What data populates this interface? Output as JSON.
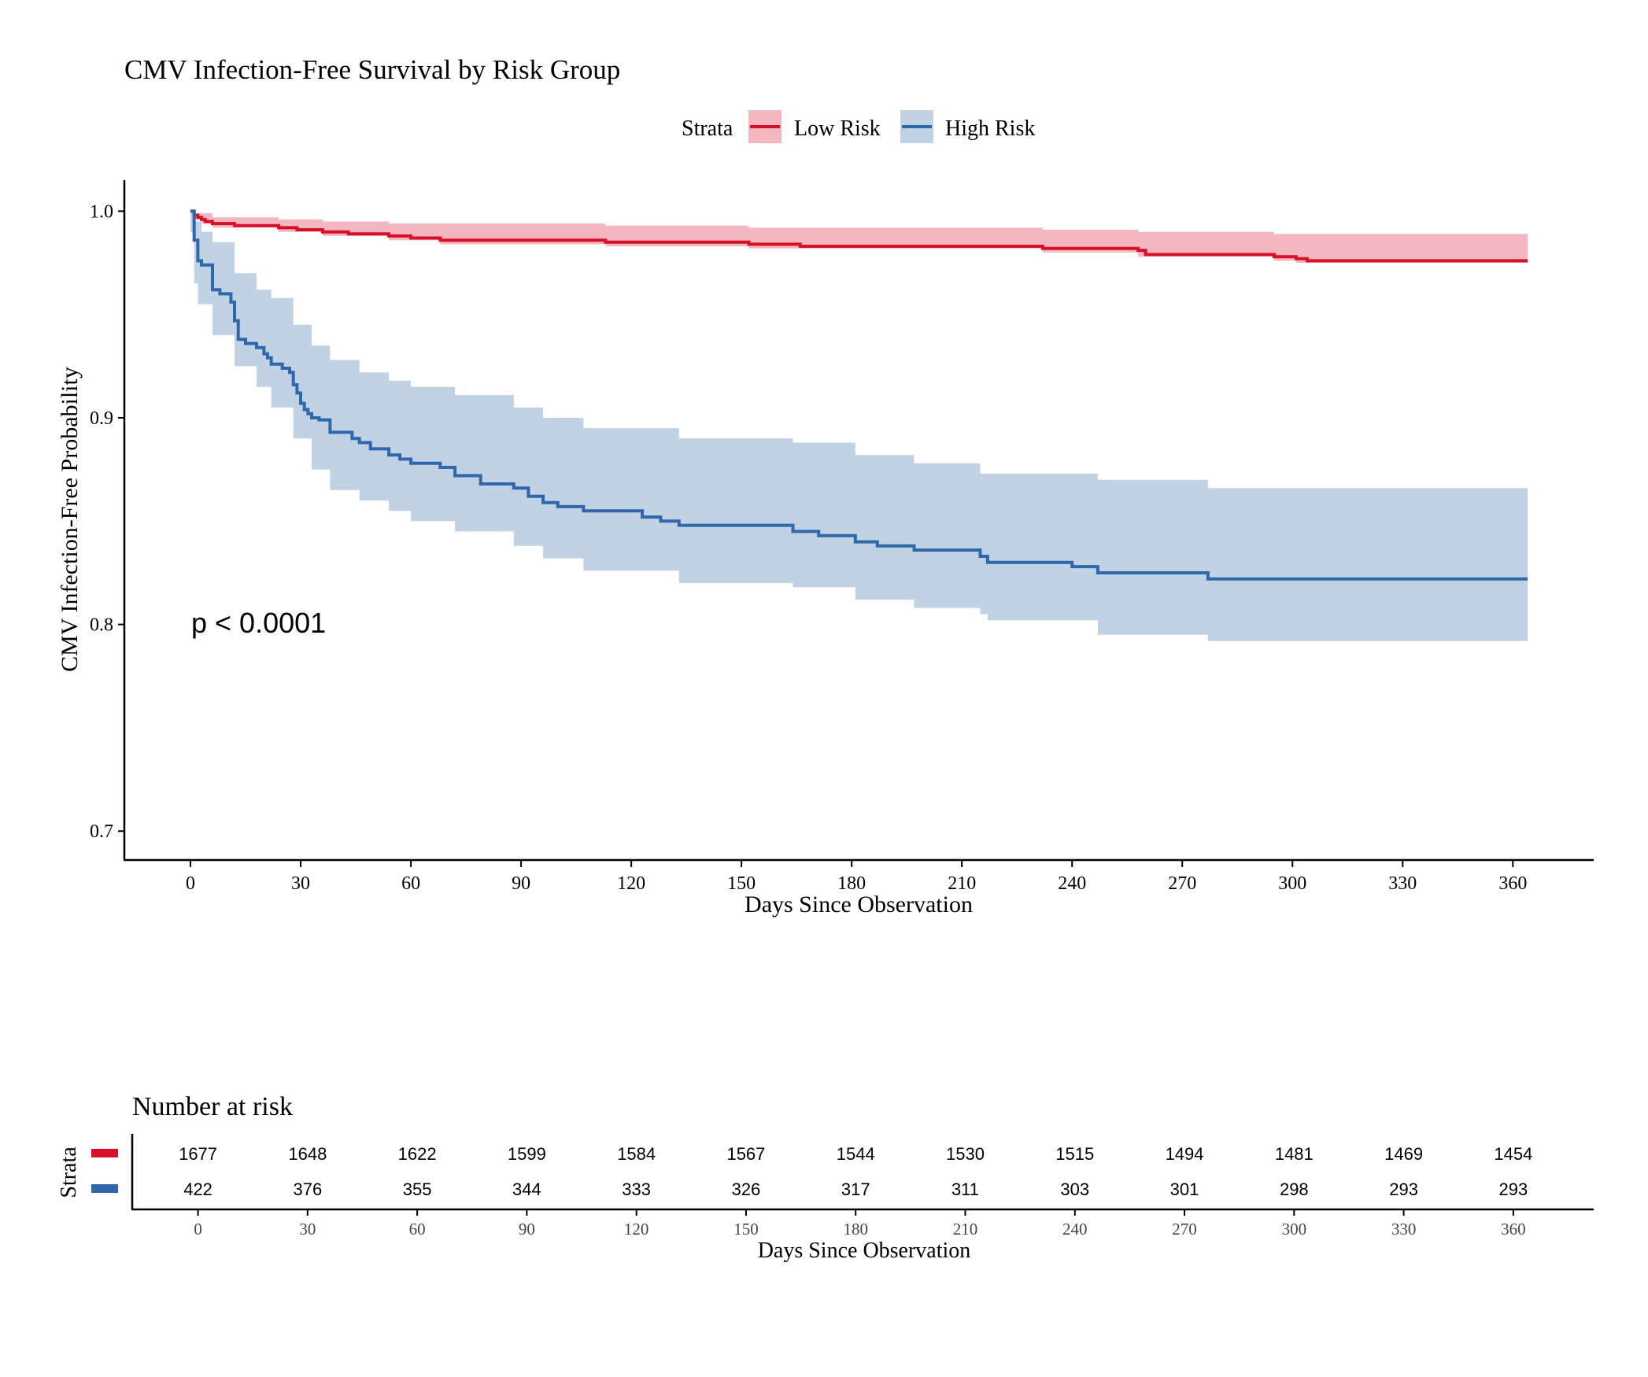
{
  "chart_data": {
    "type": "line",
    "subtype": "kaplan-meier",
    "title": "CMV Infection-Free Survival by Risk Group",
    "xlabel": "Days Since Observation",
    "ylabel": "CMV Infection-Free Probability",
    "xlim": [
      -18,
      382
    ],
    "ylim": [
      0.686,
      1.015
    ],
    "xticks": [
      0,
      30,
      60,
      90,
      120,
      150,
      180,
      210,
      240,
      270,
      300,
      330,
      360
    ],
    "yticks": [
      0.7,
      0.8,
      0.9,
      1.0
    ],
    "ytick_labels": [
      "0.7",
      "0.8",
      "0.9",
      "1.0"
    ],
    "grid": false,
    "legend": {
      "title": "Strata",
      "position": "top",
      "entries": [
        "Low Risk",
        "High Risk"
      ]
    },
    "annotation": "p < 0.0001",
    "series": [
      {
        "name": "Low Risk",
        "color": "#D7102A",
        "band_color": "#F5B7BF",
        "steps": [
          [
            0,
            1.0
          ],
          [
            1,
            0.998
          ],
          [
            2,
            0.997
          ],
          [
            3,
            0.996
          ],
          [
            4,
            0.995
          ],
          [
            6,
            0.994
          ],
          [
            12,
            0.993
          ],
          [
            24,
            0.992
          ],
          [
            29,
            0.991
          ],
          [
            36,
            0.99
          ],
          [
            43,
            0.989
          ],
          [
            54,
            0.988
          ],
          [
            60,
            0.987
          ],
          [
            68,
            0.986
          ],
          [
            113,
            0.985
          ],
          [
            152,
            0.984
          ],
          [
            166,
            0.983
          ],
          [
            232,
            0.982
          ],
          [
            258,
            0.981
          ],
          [
            260,
            0.979
          ],
          [
            295,
            0.978
          ],
          [
            301,
            0.977
          ],
          [
            304,
            0.976
          ],
          [
            364,
            0.976
          ]
        ],
        "lower": [
          [
            0,
            1.0
          ],
          [
            1,
            0.996
          ],
          [
            3,
            0.994
          ],
          [
            6,
            0.992
          ],
          [
            24,
            0.99
          ],
          [
            36,
            0.988
          ],
          [
            54,
            0.986
          ],
          [
            68,
            0.984
          ],
          [
            113,
            0.983
          ],
          [
            152,
            0.982
          ],
          [
            232,
            0.98
          ],
          [
            258,
            0.978
          ],
          [
            295,
            0.976
          ],
          [
            301,
            0.975
          ],
          [
            364,
            0.975
          ]
        ],
        "upper": [
          [
            0,
            1.0
          ],
          [
            1,
            0.999
          ],
          [
            6,
            0.997
          ],
          [
            24,
            0.996
          ],
          [
            36,
            0.995
          ],
          [
            54,
            0.994
          ],
          [
            68,
            0.994
          ],
          [
            113,
            0.993
          ],
          [
            152,
            0.992
          ],
          [
            232,
            0.991
          ],
          [
            258,
            0.99
          ],
          [
            295,
            0.989
          ],
          [
            364,
            0.988
          ]
        ]
      },
      {
        "name": "High Risk",
        "color": "#2E67AA",
        "band_color": "#C0D2E4",
        "steps": [
          [
            0,
            1.0
          ],
          [
            1,
            0.986
          ],
          [
            2,
            0.976
          ],
          [
            3,
            0.974
          ],
          [
            6,
            0.962
          ],
          [
            8,
            0.96
          ],
          [
            11,
            0.956
          ],
          [
            12,
            0.947
          ],
          [
            13,
            0.938
          ],
          [
            15,
            0.936
          ],
          [
            18,
            0.934
          ],
          [
            20,
            0.931
          ],
          [
            21,
            0.929
          ],
          [
            22,
            0.926
          ],
          [
            25,
            0.924
          ],
          [
            27,
            0.922
          ],
          [
            28,
            0.916
          ],
          [
            29,
            0.912
          ],
          [
            30,
            0.907
          ],
          [
            31,
            0.904
          ],
          [
            32,
            0.902
          ],
          [
            33,
            0.9
          ],
          [
            35,
            0.899
          ],
          [
            38,
            0.893
          ],
          [
            44,
            0.89
          ],
          [
            46,
            0.888
          ],
          [
            49,
            0.885
          ],
          [
            54,
            0.882
          ],
          [
            57,
            0.88
          ],
          [
            60,
            0.878
          ],
          [
            68,
            0.876
          ],
          [
            72,
            0.872
          ],
          [
            79,
            0.868
          ],
          [
            88,
            0.866
          ],
          [
            92,
            0.862
          ],
          [
            96,
            0.859
          ],
          [
            100,
            0.857
          ],
          [
            107,
            0.855
          ],
          [
            123,
            0.852
          ],
          [
            128,
            0.85
          ],
          [
            133,
            0.848
          ],
          [
            164,
            0.845
          ],
          [
            171,
            0.843
          ],
          [
            181,
            0.84
          ],
          [
            187,
            0.838
          ],
          [
            197,
            0.836
          ],
          [
            215,
            0.833
          ],
          [
            217,
            0.83
          ],
          [
            240,
            0.828
          ],
          [
            247,
            0.825
          ],
          [
            277,
            0.822
          ],
          [
            364,
            0.822
          ]
        ],
        "lower": [
          [
            0,
            0.99
          ],
          [
            1,
            0.965
          ],
          [
            2,
            0.955
          ],
          [
            6,
            0.94
          ],
          [
            12,
            0.925
          ],
          [
            18,
            0.915
          ],
          [
            22,
            0.905
          ],
          [
            28,
            0.89
          ],
          [
            33,
            0.875
          ],
          [
            38,
            0.865
          ],
          [
            46,
            0.86
          ],
          [
            54,
            0.855
          ],
          [
            60,
            0.85
          ],
          [
            72,
            0.845
          ],
          [
            88,
            0.838
          ],
          [
            96,
            0.832
          ],
          [
            107,
            0.826
          ],
          [
            133,
            0.82
          ],
          [
            164,
            0.818
          ],
          [
            181,
            0.812
          ],
          [
            197,
            0.808
          ],
          [
            215,
            0.805
          ],
          [
            217,
            0.802
          ],
          [
            247,
            0.795
          ],
          [
            277,
            0.792
          ],
          [
            364,
            0.792
          ]
        ],
        "upper": [
          [
            0,
            1.0
          ],
          [
            1,
            0.995
          ],
          [
            3,
            0.99
          ],
          [
            6,
            0.985
          ],
          [
            12,
            0.97
          ],
          [
            18,
            0.962
          ],
          [
            22,
            0.958
          ],
          [
            28,
            0.945
          ],
          [
            33,
            0.935
          ],
          [
            38,
            0.928
          ],
          [
            46,
            0.922
          ],
          [
            54,
            0.918
          ],
          [
            60,
            0.915
          ],
          [
            72,
            0.911
          ],
          [
            88,
            0.905
          ],
          [
            96,
            0.9
          ],
          [
            107,
            0.895
          ],
          [
            133,
            0.89
          ],
          [
            164,
            0.888
          ],
          [
            181,
            0.882
          ],
          [
            197,
            0.878
          ],
          [
            215,
            0.873
          ],
          [
            247,
            0.87
          ],
          [
            277,
            0.866
          ],
          [
            364,
            0.866
          ]
        ]
      }
    ],
    "risk_table": {
      "title": "Number at risk",
      "ylabel": "Strata",
      "xlabel": "Days Since Observation",
      "times": [
        0,
        30,
        60,
        90,
        120,
        150,
        180,
        210,
        240,
        270,
        300,
        330,
        360
      ],
      "rows": [
        {
          "name": "Low Risk",
          "color": "#D7102A",
          "values": [
            1677,
            1648,
            1622,
            1599,
            1584,
            1567,
            1544,
            1530,
            1515,
            1494,
            1481,
            1469,
            1454
          ]
        },
        {
          "name": "High Risk",
          "color": "#2E67AA",
          "values": [
            422,
            376,
            355,
            344,
            333,
            326,
            317,
            311,
            303,
            301,
            298,
            293,
            293
          ]
        }
      ]
    }
  }
}
